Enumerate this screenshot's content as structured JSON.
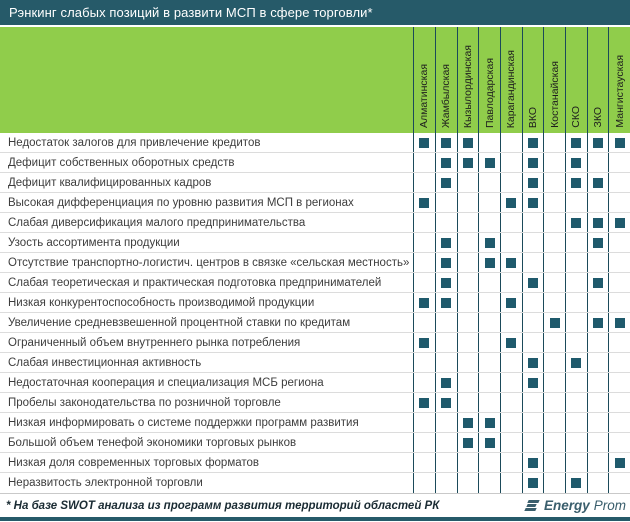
{
  "title": "Рэнкинг слабых позиций в развити МСП в сфере торговли*",
  "chart_data": {
    "type": "table",
    "title": "Рэнкинг слабых позиций в развити МСП в сфере торговли*",
    "columns": [
      "Алматинская",
      "Жамбылская",
      "Кызылординская",
      "Павлодарская",
      "Карагандинская",
      "ВКО",
      "Костанайская",
      "СКО",
      "ЗКО",
      "Мангистауская"
    ],
    "mark_symbol": "filled-square",
    "legend_position": "none",
    "rows": [
      {
        "label": "Недостаток залогов для привлечение кредитов",
        "marks": [
          1,
          2,
          3,
          6,
          8,
          9,
          10
        ]
      },
      {
        "label": "Дефицит собственных оборотных средств",
        "marks": [
          2,
          3,
          4,
          6,
          8
        ]
      },
      {
        "label": "Дефицит квалифицированных кадров",
        "marks": [
          2,
          6,
          8,
          9
        ]
      },
      {
        "label": "Высокая дифференциация по уровню развития МСП в регионах",
        "marks": [
          1,
          5,
          6
        ]
      },
      {
        "label": "Слабая диверсификация малого предпринимательства",
        "marks": [
          8,
          9,
          10
        ]
      },
      {
        "label": "Узость ассортимента продукции",
        "marks": [
          2,
          4,
          9
        ]
      },
      {
        "label": "Отсутствие транспортно-логистич. центров в связке «сельская местность»",
        "marks": [
          2,
          4,
          5
        ]
      },
      {
        "label": "Слабая теоретическая и практическая подготовка предпринимателей",
        "marks": [
          2,
          6,
          9
        ]
      },
      {
        "label": "Низкая конкурентоспособность производимой продукции",
        "marks": [
          1,
          2,
          5
        ]
      },
      {
        "label": "Увеличение средневзвешенной процентной ставки по кредитам",
        "marks": [
          7,
          9,
          10
        ]
      },
      {
        "label": "Ограниченный объем внутреннего рынка потребления",
        "marks": [
          1,
          5
        ]
      },
      {
        "label": "Слабая инвестиционная активность",
        "marks": [
          6,
          8
        ]
      },
      {
        "label": "Недостаточная кооперация и специализация МСБ региона",
        "marks": [
          2,
          6
        ]
      },
      {
        "label": "Пробелы законодательства по розничной торговле",
        "marks": [
          1,
          2
        ]
      },
      {
        "label": "Низкая информировать о системе поддержки программ развития",
        "marks": [
          3,
          4
        ]
      },
      {
        "label": "Большой объем тенефой экономики торговых рынков",
        "marks": [
          3,
          4
        ]
      },
      {
        "label": "Низкая доля современных торговых форматов",
        "marks": [
          6,
          10
        ]
      },
      {
        "label": "Неразвитость электронной торговли",
        "marks": [
          6,
          8
        ]
      }
    ]
  },
  "footer": {
    "note": "* На базе SWOT анализа из программ развития территорий областей РК",
    "brand": {
      "energy": "Energy",
      "prom": "Prom"
    }
  },
  "colors": {
    "header_bar": "#265A69",
    "header_green": "#90CD4B",
    "grid_line": "#1B4A5A",
    "row_line": "#DCDCDC",
    "mark": "#1F5A6C",
    "brand": "#3A5E6C",
    "title_text": "#FFFFFF"
  }
}
